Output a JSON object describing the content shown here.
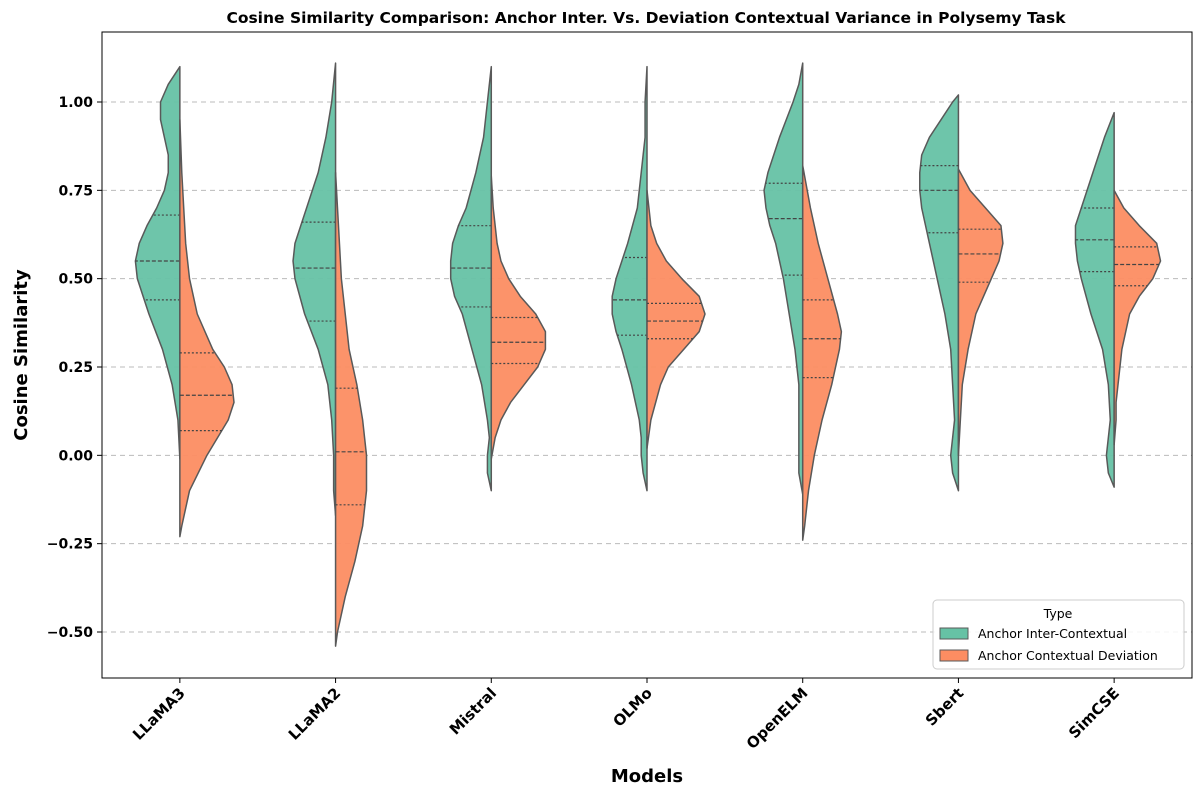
{
  "chart_data": {
    "type": "violin",
    "split": true,
    "title": "Cosine Similarity Comparison: Anchor Inter. Vs. Deviation Contextual Variance in Polysemy Task",
    "xlabel": "Models",
    "ylabel": "Cosine Similarity",
    "ylim": [
      -0.62,
      1.2
    ],
    "yticks": [
      1.0,
      0.75,
      0.5,
      0.25,
      0.0,
      -0.25,
      -0.5
    ],
    "ytick_labels": [
      "1.00",
      "0.75",
      "0.50",
      "0.25",
      "0.00",
      "−0.25",
      "−0.50"
    ],
    "categories": [
      "LLaMA3",
      "LLaMA2",
      "Mistral",
      "OLMo",
      "OpenELM",
      "Sbert",
      "SimCSE"
    ],
    "grid": "y-dashed",
    "legend": {
      "title": "Type",
      "position": "lower-right",
      "entries": [
        "Anchor Inter-Contextual",
        "Anchor Contextual Deviation"
      ]
    },
    "series": [
      {
        "name": "Anchor Inter-Contextual",
        "side": "left",
        "color": "#66c2a5",
        "quartiles": [
          [
            0.44,
            0.55,
            0.68
          ],
          [
            0.38,
            0.53,
            0.66
          ],
          [
            0.42,
            0.53,
            0.65
          ],
          [
            0.34,
            0.44,
            0.56
          ],
          [
            0.51,
            0.67,
            0.77
          ],
          [
            0.63,
            0.75,
            0.82
          ],
          [
            0.52,
            0.61,
            0.7
          ]
        ],
        "density": [
          [
            [
              -0.01,
              0.0
            ],
            [
              0.1,
              0.01
            ],
            [
              0.2,
              0.04
            ],
            [
              0.3,
              0.09
            ],
            [
              0.4,
              0.16
            ],
            [
              0.45,
              0.19
            ],
            [
              0.5,
              0.22
            ],
            [
              0.55,
              0.23
            ],
            [
              0.6,
              0.21
            ],
            [
              0.65,
              0.17
            ],
            [
              0.7,
              0.12
            ],
            [
              0.75,
              0.08
            ],
            [
              0.8,
              0.06
            ],
            [
              0.85,
              0.06
            ],
            [
              0.9,
              0.08
            ],
            [
              0.95,
              0.1
            ],
            [
              1.0,
              0.1
            ],
            [
              1.05,
              0.06
            ],
            [
              1.1,
              0.0
            ]
          ],
          [
            [
              -0.17,
              0.0
            ],
            [
              -0.1,
              0.01
            ],
            [
              0.0,
              0.01
            ],
            [
              0.1,
              0.02
            ],
            [
              0.2,
              0.04
            ],
            [
              0.3,
              0.09
            ],
            [
              0.4,
              0.16
            ],
            [
              0.5,
              0.21
            ],
            [
              0.55,
              0.22
            ],
            [
              0.6,
              0.21
            ],
            [
              0.65,
              0.18
            ],
            [
              0.7,
              0.15
            ],
            [
              0.8,
              0.09
            ],
            [
              0.9,
              0.05
            ],
            [
              1.0,
              0.02
            ],
            [
              1.11,
              0.0
            ]
          ],
          [
            [
              -0.1,
              0.0
            ],
            [
              -0.05,
              0.02
            ],
            [
              0.0,
              0.02
            ],
            [
              0.05,
              0.01
            ],
            [
              0.1,
              0.02
            ],
            [
              0.2,
              0.05
            ],
            [
              0.3,
              0.1
            ],
            [
              0.4,
              0.15
            ],
            [
              0.45,
              0.19
            ],
            [
              0.5,
              0.21
            ],
            [
              0.55,
              0.21
            ],
            [
              0.6,
              0.2
            ],
            [
              0.65,
              0.17
            ],
            [
              0.7,
              0.13
            ],
            [
              0.8,
              0.08
            ],
            [
              0.9,
              0.04
            ],
            [
              1.0,
              0.02
            ],
            [
              1.1,
              0.0
            ]
          ],
          [
            [
              -0.1,
              0.0
            ],
            [
              -0.05,
              0.02
            ],
            [
              0.0,
              0.03
            ],
            [
              0.05,
              0.03
            ],
            [
              0.1,
              0.04
            ],
            [
              0.2,
              0.08
            ],
            [
              0.3,
              0.13
            ],
            [
              0.35,
              0.16
            ],
            [
              0.4,
              0.18
            ],
            [
              0.45,
              0.18
            ],
            [
              0.5,
              0.16
            ],
            [
              0.55,
              0.13
            ],
            [
              0.6,
              0.1
            ],
            [
              0.7,
              0.05
            ],
            [
              0.8,
              0.03
            ],
            [
              0.9,
              0.01
            ],
            [
              1.0,
              0.01
            ],
            [
              1.1,
              0.0
            ]
          ],
          [
            [
              -0.11,
              0.0
            ],
            [
              -0.05,
              0.02
            ],
            [
              0.0,
              0.02
            ],
            [
              0.1,
              0.02
            ],
            [
              0.2,
              0.02
            ],
            [
              0.3,
              0.04
            ],
            [
              0.4,
              0.07
            ],
            [
              0.5,
              0.1
            ],
            [
              0.6,
              0.14
            ],
            [
              0.65,
              0.17
            ],
            [
              0.7,
              0.19
            ],
            [
              0.75,
              0.2
            ],
            [
              0.8,
              0.18
            ],
            [
              0.9,
              0.12
            ],
            [
              1.0,
              0.05
            ],
            [
              1.05,
              0.02
            ],
            [
              1.11,
              0.0
            ]
          ],
          [
            [
              -0.1,
              0.0
            ],
            [
              -0.05,
              0.03
            ],
            [
              0.0,
              0.04
            ],
            [
              0.05,
              0.03
            ],
            [
              0.1,
              0.02
            ],
            [
              0.2,
              0.03
            ],
            [
              0.3,
              0.04
            ],
            [
              0.4,
              0.07
            ],
            [
              0.5,
              0.11
            ],
            [
              0.6,
              0.15
            ],
            [
              0.7,
              0.19
            ],
            [
              0.75,
              0.2
            ],
            [
              0.8,
              0.2
            ],
            [
              0.85,
              0.19
            ],
            [
              0.9,
              0.15
            ],
            [
              0.95,
              0.09
            ],
            [
              1.0,
              0.03
            ],
            [
              1.02,
              0.0
            ]
          ],
          [
            [
              -0.09,
              0.0
            ],
            [
              -0.05,
              0.03
            ],
            [
              0.0,
              0.04
            ],
            [
              0.05,
              0.03
            ],
            [
              0.1,
              0.02
            ],
            [
              0.2,
              0.03
            ],
            [
              0.3,
              0.06
            ],
            [
              0.4,
              0.12
            ],
            [
              0.5,
              0.17
            ],
            [
              0.55,
              0.19
            ],
            [
              0.6,
              0.2
            ],
            [
              0.65,
              0.2
            ],
            [
              0.7,
              0.17
            ],
            [
              0.8,
              0.11
            ],
            [
              0.9,
              0.05
            ],
            [
              0.97,
              0.0
            ]
          ]
        ]
      },
      {
        "name": "Anchor Contextual Deviation",
        "side": "right",
        "color": "#fc8d62",
        "quartiles": [
          [
            0.07,
            0.17,
            0.29
          ],
          [
            -0.14,
            0.01,
            0.19
          ],
          [
            0.26,
            0.32,
            0.39
          ],
          [
            0.33,
            0.38,
            0.43
          ],
          [
            0.22,
            0.33,
            0.44
          ],
          [
            0.49,
            0.57,
            0.64
          ],
          [
            0.48,
            0.54,
            0.59
          ]
        ],
        "density": [
          [
            [
              -0.23,
              0.0
            ],
            [
              -0.2,
              0.01
            ],
            [
              -0.1,
              0.05
            ],
            [
              0.0,
              0.14
            ],
            [
              0.1,
              0.25
            ],
            [
              0.15,
              0.28
            ],
            [
              0.2,
              0.27
            ],
            [
              0.25,
              0.23
            ],
            [
              0.3,
              0.17
            ],
            [
              0.4,
              0.09
            ],
            [
              0.5,
              0.05
            ],
            [
              0.6,
              0.03
            ],
            [
              0.7,
              0.02
            ],
            [
              0.8,
              0.01
            ],
            [
              0.95,
              0.0
            ]
          ],
          [
            [
              -0.54,
              0.0
            ],
            [
              -0.5,
              0.01
            ],
            [
              -0.4,
              0.05
            ],
            [
              -0.3,
              0.1
            ],
            [
              -0.2,
              0.14
            ],
            [
              -0.1,
              0.16
            ],
            [
              0.0,
              0.16
            ],
            [
              0.1,
              0.14
            ],
            [
              0.2,
              0.11
            ],
            [
              0.3,
              0.07
            ],
            [
              0.4,
              0.05
            ],
            [
              0.5,
              0.03
            ],
            [
              0.6,
              0.02
            ],
            [
              0.7,
              0.01
            ],
            [
              0.8,
              0.0
            ]
          ],
          [
            [
              -0.01,
              0.0
            ],
            [
              0.05,
              0.02
            ],
            [
              0.1,
              0.05
            ],
            [
              0.15,
              0.1
            ],
            [
              0.2,
              0.17
            ],
            [
              0.25,
              0.24
            ],
            [
              0.3,
              0.28
            ],
            [
              0.35,
              0.28
            ],
            [
              0.4,
              0.23
            ],
            [
              0.45,
              0.15
            ],
            [
              0.5,
              0.09
            ],
            [
              0.55,
              0.05
            ],
            [
              0.6,
              0.03
            ],
            [
              0.7,
              0.01
            ],
            [
              0.79,
              0.0
            ]
          ],
          [
            [
              0.02,
              0.0
            ],
            [
              0.1,
              0.02
            ],
            [
              0.2,
              0.07
            ],
            [
              0.25,
              0.11
            ],
            [
              0.3,
              0.19
            ],
            [
              0.35,
              0.27
            ],
            [
              0.4,
              0.3
            ],
            [
              0.45,
              0.27
            ],
            [
              0.5,
              0.18
            ],
            [
              0.55,
              0.1
            ],
            [
              0.6,
              0.05
            ],
            [
              0.65,
              0.02
            ],
            [
              0.75,
              0.0
            ]
          ],
          [
            [
              -0.24,
              0.0
            ],
            [
              -0.2,
              0.01
            ],
            [
              -0.1,
              0.03
            ],
            [
              0.0,
              0.06
            ],
            [
              0.1,
              0.1
            ],
            [
              0.2,
              0.15
            ],
            [
              0.3,
              0.19
            ],
            [
              0.35,
              0.2
            ],
            [
              0.4,
              0.18
            ],
            [
              0.5,
              0.13
            ],
            [
              0.6,
              0.08
            ],
            [
              0.7,
              0.04
            ],
            [
              0.82,
              0.0
            ]
          ],
          [
            [
              0.0,
              0.0
            ],
            [
              0.1,
              0.01
            ],
            [
              0.2,
              0.02
            ],
            [
              0.3,
              0.05
            ],
            [
              0.4,
              0.09
            ],
            [
              0.45,
              0.13
            ],
            [
              0.5,
              0.17
            ],
            [
              0.55,
              0.21
            ],
            [
              0.6,
              0.23
            ],
            [
              0.65,
              0.22
            ],
            [
              0.7,
              0.14
            ],
            [
              0.75,
              0.06
            ],
            [
              0.81,
              0.0
            ]
          ],
          [
            [
              0.03,
              0.0
            ],
            [
              0.1,
              0.01
            ],
            [
              0.15,
              0.01
            ],
            [
              0.2,
              0.02
            ],
            [
              0.3,
              0.04
            ],
            [
              0.4,
              0.08
            ],
            [
              0.45,
              0.13
            ],
            [
              0.5,
              0.2
            ],
            [
              0.55,
              0.24
            ],
            [
              0.6,
              0.22
            ],
            [
              0.65,
              0.13
            ],
            [
              0.7,
              0.05
            ],
            [
              0.75,
              0.0
            ]
          ]
        ]
      }
    ]
  }
}
